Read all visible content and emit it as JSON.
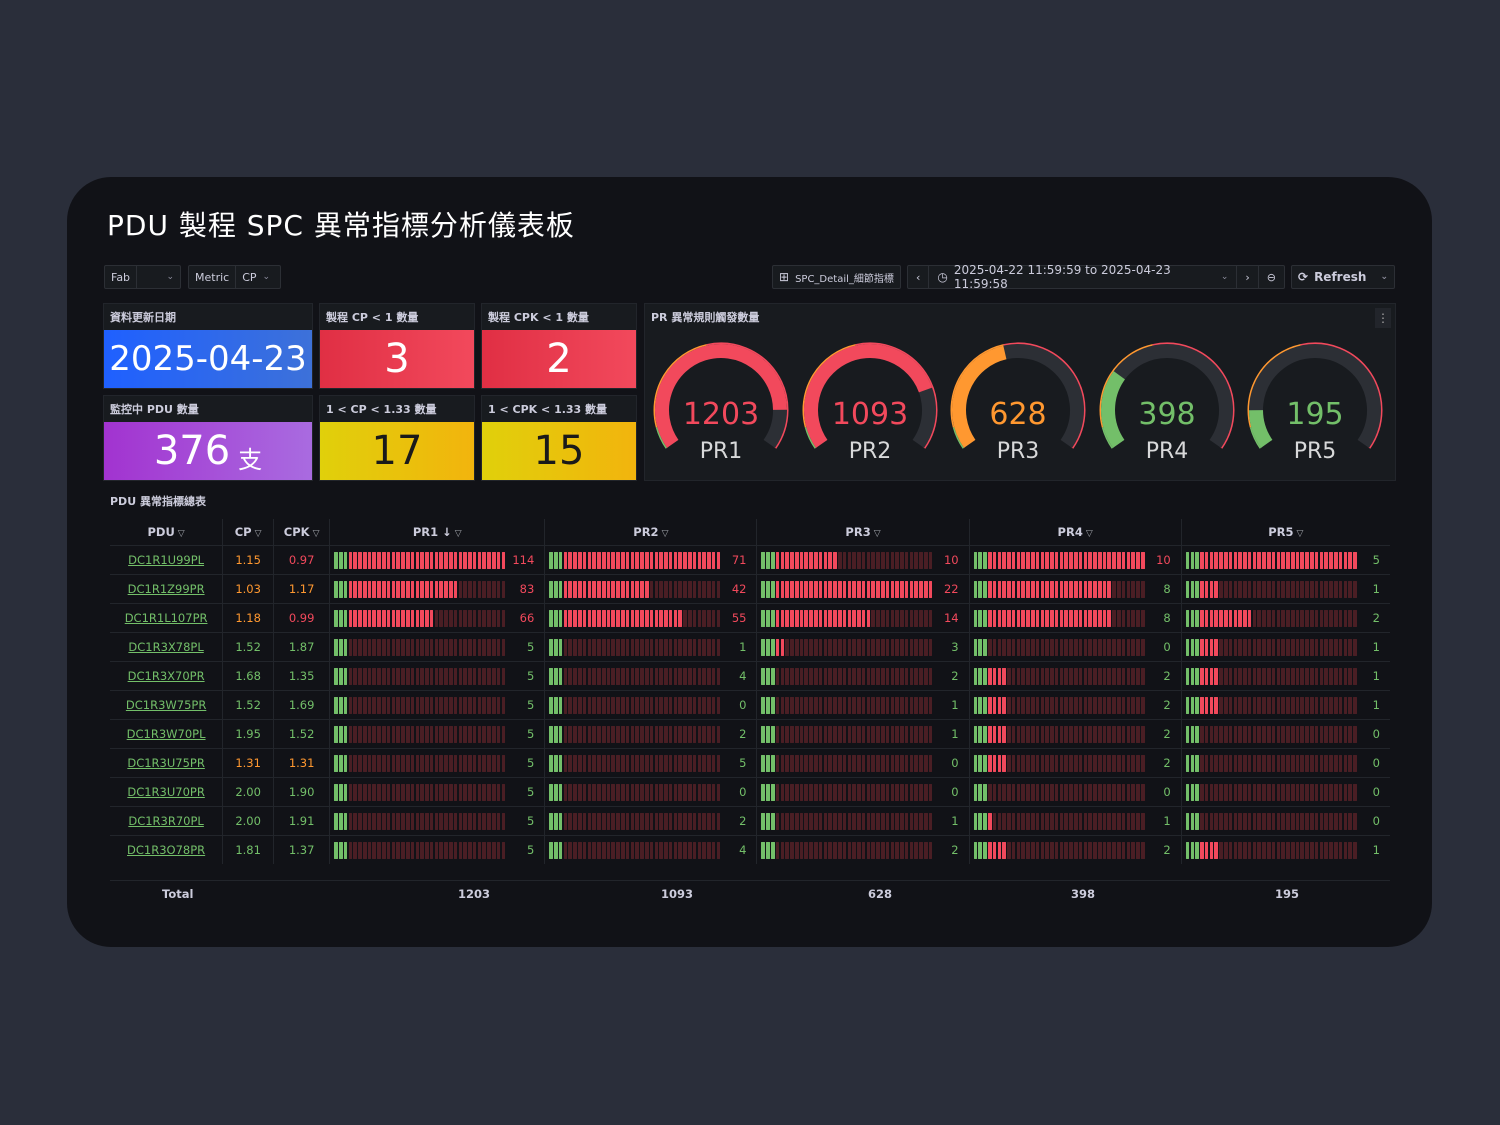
{
  "title": "PDU 製程 SPC 異常指標分析儀表板",
  "controls": {
    "fab_label": "Fab",
    "metric_label": "Metric",
    "metric_value": "CP",
    "dashboard_link": "SPC_Detail_細節指標",
    "time_range": "2025-04-22 11:59:59 to 2025-04-23 11:59:58",
    "refresh_label": "Refresh"
  },
  "stats": {
    "update_date": {
      "title": "資料更新日期",
      "value": "2025-04-23"
    },
    "cp_lt1": {
      "title": "製程 CP < 1 數量",
      "value": "3"
    },
    "cpk_lt1": {
      "title": "製程 CPK < 1 數量",
      "value": "2"
    },
    "pdu_count": {
      "title": "監控中 PDU 數量",
      "value": "376",
      "unit": "支"
    },
    "cp_mid": {
      "title": "1 < CP < 1.33 數量",
      "value": "17"
    },
    "cpk_mid": {
      "title": "1 < CPK < 1.33 數量",
      "value": "15"
    }
  },
  "gauges": {
    "title": "PR 異常規則觸發數量",
    "max": 1400,
    "items": [
      {
        "label": "PR1",
        "value": 1203,
        "text": "1203",
        "color": "#f2495c"
      },
      {
        "label": "PR2",
        "value": 1093,
        "text": "1093",
        "color": "#f2495c"
      },
      {
        "label": "PR3",
        "value": 628,
        "text": "628",
        "color": "#ff9830"
      },
      {
        "label": "PR4",
        "value": 398,
        "text": "398",
        "color": "#73bf69"
      },
      {
        "label": "PR5",
        "value": 195,
        "text": "195",
        "color": "#73bf69"
      }
    ]
  },
  "table": {
    "title": "PDU 異常指標總表",
    "headers": {
      "pdu": "PDU",
      "cp": "CP",
      "cpk": "CPK",
      "pr1": "PR1",
      "pr2": "PR2",
      "pr3": "PR3",
      "pr4": "PR4",
      "pr5": "PR5"
    },
    "sort_icon": "↓",
    "rows": [
      {
        "pdu": "DC1R1U99PL",
        "cp": "1.15",
        "cpk": "0.97",
        "pr": [
          114,
          71,
          10,
          10,
          5
        ]
      },
      {
        "pdu": "DC1R1Z99PR",
        "cp": "1.03",
        "cpk": "1.17",
        "pr": [
          83,
          42,
          22,
          8,
          1
        ]
      },
      {
        "pdu": "DC1R1L107PR",
        "cp": "1.18",
        "cpk": "0.99",
        "pr": [
          66,
          55,
          14,
          8,
          2
        ]
      },
      {
        "pdu": "DC1R3X78PL",
        "cp": "1.52",
        "cpk": "1.87",
        "pr": [
          5,
          1,
          3,
          0,
          1
        ]
      },
      {
        "pdu": "DC1R3X70PR",
        "cp": "1.68",
        "cpk": "1.35",
        "pr": [
          5,
          4,
          2,
          2,
          1
        ]
      },
      {
        "pdu": "DC1R3W75PR",
        "cp": "1.52",
        "cpk": "1.69",
        "pr": [
          5,
          0,
          1,
          2,
          1
        ]
      },
      {
        "pdu": "DC1R3W70PL",
        "cp": "1.95",
        "cpk": "1.52",
        "pr": [
          5,
          2,
          1,
          2,
          0
        ]
      },
      {
        "pdu": "DC1R3U75PR",
        "cp": "1.31",
        "cpk": "1.31",
        "pr": [
          5,
          5,
          0,
          2,
          0
        ]
      },
      {
        "pdu": "DC1R3U70PR",
        "cp": "2.00",
        "cpk": "1.90",
        "pr": [
          5,
          0,
          0,
          0,
          0
        ]
      },
      {
        "pdu": "DC1R3R70PL",
        "cp": "2.00",
        "cpk": "1.91",
        "pr": [
          5,
          2,
          1,
          1,
          0
        ]
      },
      {
        "pdu": "DC1R3O78PR",
        "cp": "1.81",
        "cpk": "1.37",
        "pr": [
          5,
          4,
          2,
          2,
          1
        ]
      }
    ],
    "bar_max": [
      114,
      71,
      22,
      10,
      5
    ],
    "total_label": "Total",
    "totals": [
      "1203",
      "1093",
      "628",
      "398",
      "195"
    ]
  },
  "colors": {
    "green": "#73bf69",
    "orange": "#ff9830",
    "red": "#f2495c",
    "link": "#73bf69"
  }
}
